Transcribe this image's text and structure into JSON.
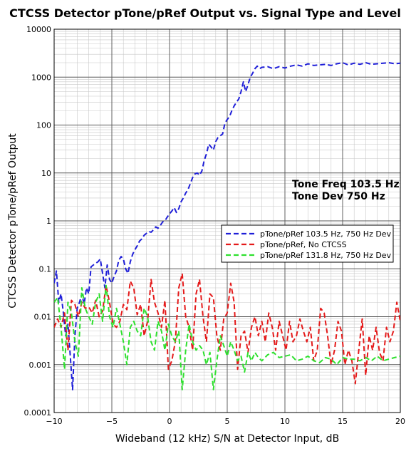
{
  "chart_data": {
    "type": "line",
    "title": "CTCSS Detector pTone/pRef Output vs. Signal Type and Level",
    "xlabel": "Wideband (12 kHz) S/N at Detector Input, dB",
    "ylabel": "CTCSS Detector pTone/pRef  Output",
    "xlim": [
      -10,
      20
    ],
    "ylim": [
      0.0001,
      10000
    ],
    "yscale": "log",
    "grid": true,
    "legend_position": "center-right",
    "x_ticks": [
      -10,
      -5,
      0,
      5,
      10,
      15,
      20
    ],
    "x_tick_labels": [
      "−10",
      "−5",
      "0",
      "5",
      "10",
      "15",
      "20"
    ],
    "y_ticks": [
      0.0001,
      0.001,
      0.01,
      0.1,
      1,
      10,
      100,
      1000,
      10000
    ],
    "y_tick_labels": [
      "0.0001",
      "0.001",
      "0.01",
      "0.1",
      "1",
      "10",
      "100",
      "1000",
      "10000"
    ],
    "annotations": [
      "Tone Freq 103.5 Hz",
      "Tone Dev 750 Hz"
    ],
    "series": [
      {
        "name": "pTone/pRef 103.5 Hz,  750 Hz Dev",
        "color": "#1f1fd8",
        "x": [
          -10,
          -9.8,
          -9.6,
          -9.4,
          -9.2,
          -9.0,
          -8.8,
          -8.6,
          -8.4,
          -8.2,
          -8.0,
          -7.8,
          -7.6,
          -7.4,
          -7.2,
          -7.0,
          -6.8,
          -6.6,
          -6.4,
          -6.2,
          -6.0,
          -5.8,
          -5.6,
          -5.4,
          -5.2,
          -5.0,
          -4.8,
          -4.6,
          -4.4,
          -4.2,
          -4.0,
          -3.8,
          -3.6,
          -3.4,
          -3.2,
          -3.0,
          -2.8,
          -2.6,
          -2.4,
          -2.2,
          -2.0,
          -1.8,
          -1.6,
          -1.4,
          -1.2,
          -1.0,
          -0.8,
          -0.6,
          -0.4,
          -0.2,
          0.0,
          0.2,
          0.4,
          0.6,
          0.8,
          1.0,
          1.2,
          1.4,
          1.6,
          1.8,
          2.0,
          2.2,
          2.4,
          2.6,
          2.8,
          3.0,
          3.2,
          3.4,
          3.6,
          3.8,
          4.0,
          4.2,
          4.4,
          4.6,
          4.8,
          5.0,
          5.2,
          5.4,
          5.6,
          5.8,
          6.0,
          6.2,
          6.4,
          6.6,
          6.8,
          7.0,
          7.2,
          7.4,
          7.6,
          7.8,
          8.0,
          8.5,
          9.0,
          9.5,
          10.0,
          10.5,
          11.0,
          11.5,
          12.0,
          12.5,
          13.0,
          13.5,
          14.0,
          14.5,
          15.0,
          15.5,
          16.0,
          16.5,
          17.0,
          17.5,
          18.0,
          18.5,
          19.0,
          19.5,
          20.0
        ],
        "y": [
          0.05,
          0.09,
          0.02,
          0.03,
          0.012,
          0.004,
          0.007,
          0.0015,
          0.0003,
          0.004,
          0.015,
          0.02,
          0.03,
          0.018,
          0.04,
          0.03,
          0.11,
          0.12,
          0.13,
          0.14,
          0.16,
          0.08,
          0.04,
          0.12,
          0.06,
          0.05,
          0.07,
          0.09,
          0.15,
          0.18,
          0.16,
          0.1,
          0.08,
          0.14,
          0.2,
          0.25,
          0.3,
          0.38,
          0.42,
          0.5,
          0.55,
          0.6,
          0.58,
          0.65,
          0.75,
          0.7,
          0.8,
          0.95,
          1.0,
          1.2,
          1.4,
          1.6,
          1.9,
          1.5,
          1.8,
          2.5,
          3.0,
          3.8,
          4.5,
          6.0,
          8.0,
          9.5,
          10.0,
          9.0,
          11.0,
          18.0,
          25.0,
          40.0,
          35.0,
          30.0,
          45.0,
          55.0,
          60.0,
          65.0,
          110.0,
          130.0,
          150.0,
          200.0,
          250.0,
          300.0,
          350.0,
          500.0,
          800.0,
          500.0,
          700.0,
          1000.0,
          1200.0,
          1500.0,
          1700.0,
          1500.0,
          1600.0,
          1650.0,
          1500.0,
          1650.0,
          1550.0,
          1700.0,
          1800.0,
          1700.0,
          1900.0,
          1750.0,
          1800.0,
          1850.0,
          1750.0,
          1900.0,
          2000.0,
          1800.0,
          1950.0,
          1850.0,
          2000.0,
          1850.0,
          1900.0,
          1950.0,
          2000.0,
          1900.0,
          1950.0
        ]
      },
      {
        "name": "pTone/pRef,   No CTCSS",
        "color": "#e41a1a",
        "x": [
          -10.0,
          -9.7,
          -9.4,
          -9.1,
          -8.8,
          -8.5,
          -8.2,
          -7.9,
          -7.6,
          -7.3,
          -7.0,
          -6.7,
          -6.4,
          -6.1,
          -5.8,
          -5.5,
          -5.2,
          -4.9,
          -4.6,
          -4.3,
          -4.0,
          -3.7,
          -3.4,
          -3.1,
          -2.8,
          -2.5,
          -2.2,
          -1.9,
          -1.6,
          -1.3,
          -1.0,
          -0.7,
          -0.4,
          -0.1,
          0.2,
          0.5,
          0.8,
          1.1,
          1.4,
          1.7,
          2.0,
          2.3,
          2.6,
          2.9,
          3.2,
          3.5,
          3.8,
          4.1,
          4.4,
          4.7,
          5.0,
          5.3,
          5.6,
          5.9,
          6.2,
          6.5,
          6.8,
          7.1,
          7.4,
          7.7,
          8.0,
          8.3,
          8.6,
          8.9,
          9.2,
          9.5,
          9.8,
          10.1,
          10.4,
          10.7,
          11.0,
          11.3,
          11.6,
          11.9,
          12.2,
          12.5,
          12.8,
          13.1,
          13.4,
          13.7,
          14.0,
          14.3,
          14.6,
          14.9,
          15.2,
          15.5,
          15.8,
          16.1,
          16.4,
          16.7,
          17.0,
          17.3,
          17.6,
          17.9,
          18.2,
          18.5,
          18.8,
          19.1,
          19.4,
          19.7,
          20.0
        ],
        "y": [
          0.006,
          0.009,
          0.006,
          0.012,
          0.002,
          0.022,
          0.018,
          0.01,
          0.02,
          0.015,
          0.016,
          0.012,
          0.022,
          0.01,
          0.013,
          0.045,
          0.02,
          0.007,
          0.006,
          0.008,
          0.018,
          0.014,
          0.055,
          0.04,
          0.011,
          0.018,
          0.004,
          0.008,
          0.06,
          0.02,
          0.012,
          0.006,
          0.022,
          0.0008,
          0.0012,
          0.003,
          0.04,
          0.08,
          0.01,
          0.006,
          0.002,
          0.03,
          0.06,
          0.01,
          0.003,
          0.03,
          0.025,
          0.004,
          0.002,
          0.009,
          0.012,
          0.05,
          0.02,
          0.0008,
          0.004,
          0.005,
          0.0018,
          0.006,
          0.01,
          0.004,
          0.008,
          0.003,
          0.012,
          0.006,
          0.002,
          0.008,
          0.004,
          0.002,
          0.008,
          0.003,
          0.004,
          0.009,
          0.005,
          0.003,
          0.006,
          0.0012,
          0.002,
          0.015,
          0.012,
          0.004,
          0.001,
          0.002,
          0.008,
          0.005,
          0.001,
          0.002,
          0.0012,
          0.0004,
          0.002,
          0.009,
          0.0006,
          0.004,
          0.002,
          0.006,
          0.0018,
          0.0012,
          0.006,
          0.003,
          0.005,
          0.02,
          0.008
        ]
      },
      {
        "name": "pTone/pRef 131.8 Hz, 750 Hz Dev",
        "color": "#2ee02e",
        "x": [
          -10.0,
          -9.7,
          -9.4,
          -9.1,
          -8.8,
          -8.5,
          -8.2,
          -7.9,
          -7.6,
          -7.3,
          -7.0,
          -6.7,
          -6.4,
          -6.1,
          -5.8,
          -5.5,
          -5.2,
          -4.9,
          -4.6,
          -4.3,
          -4.0,
          -3.7,
          -3.4,
          -3.1,
          -2.8,
          -2.5,
          -2.2,
          -1.9,
          -1.6,
          -1.3,
          -1.0,
          -0.7,
          -0.4,
          -0.1,
          0.2,
          0.5,
          0.8,
          1.1,
          1.4,
          1.7,
          2.0,
          2.3,
          2.6,
          2.9,
          3.2,
          3.5,
          3.8,
          4.1,
          4.4,
          4.7,
          5.0,
          5.3,
          5.6,
          5.9,
          6.2,
          6.5,
          6.8,
          7.1,
          7.4,
          7.7,
          8.0,
          8.5,
          9.0,
          9.5,
          10.0,
          10.5,
          11.0,
          11.5,
          12.0,
          12.5,
          13.0,
          13.5,
          14.0,
          14.5,
          15.0,
          15.5,
          16.0,
          16.5,
          17.0,
          17.5,
          18.0,
          18.5,
          19.0,
          19.5,
          20.0
        ],
        "y": [
          0.02,
          0.025,
          0.006,
          0.0008,
          0.02,
          0.012,
          0.003,
          0.0015,
          0.04,
          0.015,
          0.01,
          0.007,
          0.02,
          0.03,
          0.008,
          0.045,
          0.01,
          0.006,
          0.015,
          0.007,
          0.003,
          0.001,
          0.006,
          0.008,
          0.005,
          0.004,
          0.015,
          0.01,
          0.003,
          0.002,
          0.008,
          0.005,
          0.002,
          0.007,
          0.004,
          0.003,
          0.005,
          0.0003,
          0.002,
          0.007,
          0.003,
          0.002,
          0.0025,
          0.002,
          0.001,
          0.0018,
          0.0003,
          0.0012,
          0.004,
          0.0025,
          0.0015,
          0.003,
          0.002,
          0.0012,
          0.0015,
          0.0007,
          0.0018,
          0.0012,
          0.0018,
          0.0014,
          0.0012,
          0.0016,
          0.0018,
          0.0014,
          0.0015,
          0.0016,
          0.0012,
          0.0013,
          0.0015,
          0.0012,
          0.0011,
          0.0014,
          0.0013,
          0.001,
          0.0014,
          0.0013,
          0.0013,
          0.0012,
          0.0014,
          0.0012,
          0.0015,
          0.0012,
          0.0013,
          0.0014,
          0.0015
        ]
      }
    ]
  }
}
